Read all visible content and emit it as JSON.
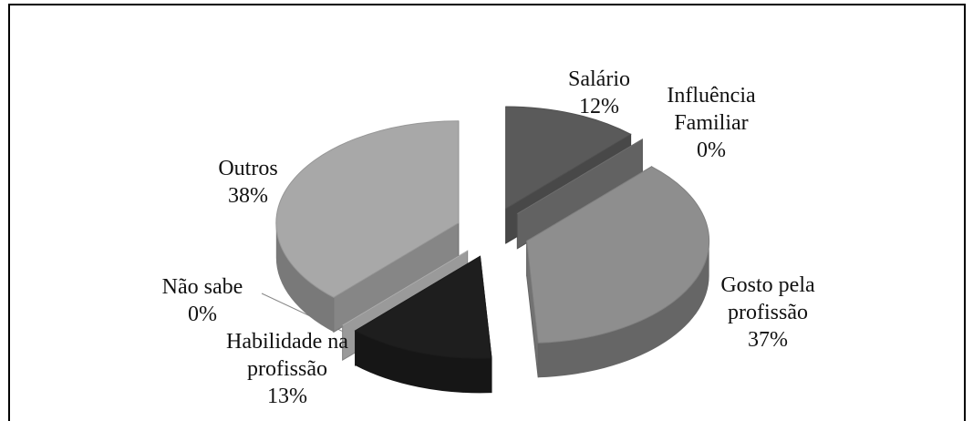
{
  "chart_data": {
    "type": "pie",
    "categories": [
      "Salário",
      "Influência Familiar",
      "Gosto pela profissão",
      "Habilidade na profissão",
      "Não sabe",
      "Outros"
    ],
    "values": [
      12,
      0,
      37,
      13,
      0,
      38
    ],
    "value_labels": [
      "12%",
      "0%",
      "37%",
      "13%",
      "0%",
      "38%"
    ],
    "colors": [
      "#5a5a5a",
      "#7a7a7a",
      "#8e8e8e",
      "#1e1e1e",
      "#c0c0c0",
      "#a8a8a8"
    ]
  }
}
